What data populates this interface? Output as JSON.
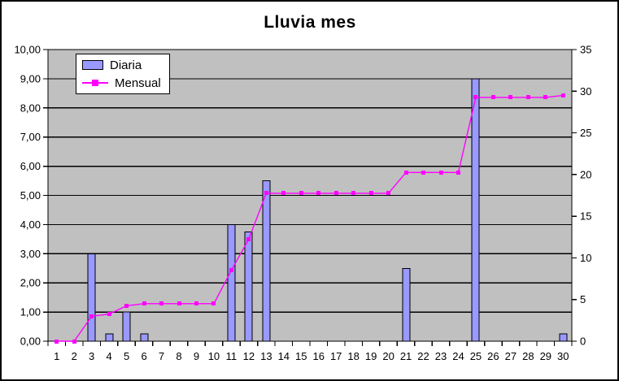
{
  "title": "Lluvia mes",
  "legend": {
    "items": [
      {
        "label": "Diaria",
        "type": "bar"
      },
      {
        "label": "Mensual",
        "type": "line"
      }
    ]
  },
  "colors": {
    "bar_fill": "#9999FF",
    "bar_border": "#000000",
    "line": "#FF00FF",
    "plot_background": "#C0C0C0",
    "gridline": "#000000",
    "axis": "#000000",
    "text": "#000000",
    "chart_background": "#FFFFFF"
  },
  "chart_data": {
    "type": "combo",
    "title": "Lluvia mes",
    "categories": [
      "1",
      "2",
      "3",
      "4",
      "5",
      "6",
      "7",
      "8",
      "9",
      "10",
      "11",
      "12",
      "13",
      "14",
      "15",
      "16",
      "17",
      "18",
      "19",
      "20",
      "21",
      "22",
      "23",
      "24",
      "25",
      "26",
      "27",
      "28",
      "29",
      "30"
    ],
    "series": [
      {
        "name": "Diaria",
        "type": "bar",
        "axis": "left",
        "color": "#9999FF",
        "values": [
          0,
          0,
          3.0,
          0.25,
          1.0,
          0.25,
          0,
          0,
          0,
          0,
          4.0,
          3.75,
          5.5,
          0,
          0,
          0,
          0,
          0,
          0,
          0,
          2.5,
          0,
          0,
          0,
          9.0,
          0,
          0,
          0,
          0,
          0.25
        ]
      },
      {
        "name": "Mensual",
        "type": "line",
        "axis": "right",
        "color": "#FF00FF",
        "values": [
          0,
          0,
          3.0,
          3.25,
          4.25,
          4.5,
          4.5,
          4.5,
          4.5,
          4.5,
          8.5,
          12.25,
          17.75,
          17.75,
          17.75,
          17.75,
          17.75,
          17.75,
          17.75,
          17.75,
          20.25,
          20.25,
          20.25,
          20.25,
          29.25,
          29.25,
          29.25,
          29.25,
          29.25,
          29.5
        ]
      }
    ],
    "y_left": {
      "min": 0,
      "max": 10,
      "step": 1,
      "tick_labels": [
        "0,00",
        "1,00",
        "2,00",
        "3,00",
        "4,00",
        "5,00",
        "6,00",
        "7,00",
        "8,00",
        "9,00",
        "10,00"
      ]
    },
    "y_right": {
      "min": 0,
      "max": 35,
      "step": 5,
      "tick_labels": [
        "0",
        "5",
        "10",
        "15",
        "20",
        "25",
        "30",
        "35"
      ]
    },
    "grid": true,
    "legend_position": "top-left",
    "xlabel": "",
    "ylabel": ""
  }
}
